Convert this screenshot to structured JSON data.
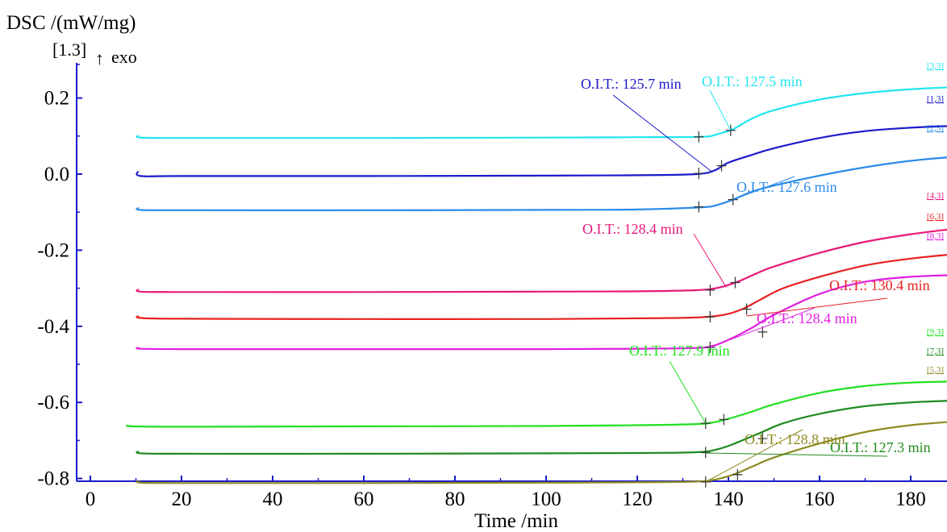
{
  "chart_data": {
    "type": "line",
    "ylabel": "DSC /(mW/mg)",
    "xlabel": "Time /min",
    "ylabel_tag": "[1.3]",
    "exo_label": "exo",
    "xlim": [
      -2,
      190
    ],
    "ylim": [
      -0.93,
      0.265
    ],
    "xticks": [
      0,
      20,
      40,
      60,
      80,
      100,
      120,
      140,
      160,
      180
    ],
    "xtick_labels": [
      "0",
      "20",
      "40",
      "60",
      "80",
      "100",
      "120",
      "140",
      "160",
      "180"
    ],
    "yticks": [
      0.2,
      0.0,
      -0.2,
      -0.4,
      -0.6,
      -0.8
    ],
    "ytick_labels": [
      "0.2",
      "0.0",
      "-0.2",
      "-0.4",
      "-0.6",
      "-0.8"
    ],
    "grid": false,
    "series": [
      {
        "name": "[3,3]",
        "color": "#20e6f0",
        "x": [
          10.5,
          11,
          20,
          60,
          100,
          120,
          134,
          137,
          141,
          145,
          150,
          160,
          170,
          180,
          190
        ],
        "y": [
          0.102,
          0.096,
          0.095,
          0.095,
          0.096,
          0.097,
          0.098,
          0.103,
          0.118,
          0.145,
          0.168,
          0.196,
          0.213,
          0.223,
          0.229
        ],
        "onset": {
          "x1": 133.5,
          "y1": 0.098,
          "x2": 140.5,
          "y2": 0.115
        },
        "oit_label": "O.I.T.: 127.5 min"
      },
      {
        "name": "[1,3]",
        "color": "#1a1acc",
        "x": [
          10.5,
          11,
          20,
          60,
          100,
          120,
          133,
          137,
          140,
          145,
          150,
          160,
          170,
          180,
          190
        ],
        "y": [
          0.008,
          -0.005,
          -0.005,
          -0.005,
          -0.004,
          -0.003,
          0.0,
          0.01,
          0.03,
          0.05,
          0.068,
          0.095,
          0.113,
          0.122,
          0.127
        ],
        "onset": {
          "x1": 133.5,
          "y1": 0.002,
          "x2": 138.5,
          "y2": 0.022
        },
        "oit_label": "O.I.T.: 125.7 min"
      },
      {
        "name": "[2,3]",
        "color": "#2a8ae8",
        "x": [
          10.5,
          11,
          20,
          60,
          100,
          120,
          133,
          137,
          141,
          145,
          150,
          160,
          170,
          180,
          190
        ],
        "y": [
          -0.088,
          -0.094,
          -0.095,
          -0.095,
          -0.094,
          -0.093,
          -0.088,
          -0.083,
          -0.067,
          -0.047,
          -0.03,
          -0.004,
          0.018,
          0.035,
          0.046
        ],
        "onset": {
          "x1": 133.5,
          "y1": -0.086,
          "x2": 141,
          "y2": -0.067
        },
        "oit_label": "O.I.T.: 127.6 min"
      },
      {
        "name": "[4,3]",
        "color": "#e8187a",
        "x": [
          10.5,
          11,
          20,
          60,
          100,
          120,
          133,
          138,
          142,
          146,
          150,
          160,
          170,
          180,
          190
        ],
        "y": [
          -0.302,
          -0.309,
          -0.31,
          -0.31,
          -0.309,
          -0.308,
          -0.305,
          -0.298,
          -0.283,
          -0.262,
          -0.243,
          -0.207,
          -0.178,
          -0.158,
          -0.143
        ],
        "onset": {
          "x1": 136,
          "y1": -0.305,
          "x2": 141.5,
          "y2": -0.285
        },
        "oit_label": "O.I.T.: 128.4 min"
      },
      {
        "name": "[6,3]",
        "color": "#e82020",
        "x": [
          10.5,
          11,
          20,
          60,
          100,
          120,
          133,
          139,
          143,
          147,
          152,
          160,
          170,
          180,
          190
        ],
        "y": [
          -0.372,
          -0.378,
          -0.38,
          -0.381,
          -0.381,
          -0.379,
          -0.377,
          -0.37,
          -0.355,
          -0.33,
          -0.3,
          -0.27,
          -0.24,
          -0.222,
          -0.21
        ],
        "onset": {
          "x1": 136,
          "y1": -0.375,
          "x2": 144,
          "y2": -0.355
        },
        "oit_label": "O.I.T.: 130.4 min"
      },
      {
        "name": "[8,3]",
        "color": "#e020e0",
        "x": [
          10.5,
          11,
          20,
          60,
          100,
          120,
          133,
          137,
          141,
          145,
          150,
          160,
          170,
          180,
          190
        ],
        "y": [
          -0.455,
          -0.459,
          -0.46,
          -0.46,
          -0.46,
          -0.459,
          -0.457,
          -0.45,
          -0.43,
          -0.405,
          -0.37,
          -0.315,
          -0.283,
          -0.27,
          -0.265
        ],
        "onset": {
          "x1": 136,
          "y1": -0.455,
          "x2": 147.5,
          "y2": -0.415
        },
        "oit_label": "O.I.T.: 128.4 min"
      },
      {
        "name": "[9,3]",
        "color": "#20e020",
        "x": [
          8.5,
          9,
          20,
          60,
          100,
          120,
          133,
          137,
          140,
          145,
          150,
          160,
          170,
          180,
          190
        ],
        "y": [
          -0.66,
          -0.663,
          -0.664,
          -0.663,
          -0.662,
          -0.66,
          -0.657,
          -0.652,
          -0.643,
          -0.625,
          -0.605,
          -0.575,
          -0.557,
          -0.548,
          -0.545
        ],
        "onset": {
          "x1": 135,
          "y1": -0.655,
          "x2": 139,
          "y2": -0.645
        },
        "oit_label": "O.I.T.: 127.9 min"
      },
      {
        "name": "[7,3]",
        "color": "#1e8a1e",
        "x": [
          10.5,
          11,
          20,
          60,
          100,
          120,
          133,
          138,
          142,
          147,
          152,
          160,
          170,
          180,
          190
        ],
        "y": [
          -0.728,
          -0.734,
          -0.735,
          -0.735,
          -0.734,
          -0.733,
          -0.731,
          -0.722,
          -0.705,
          -0.68,
          -0.655,
          -0.63,
          -0.61,
          -0.6,
          -0.595
        ],
        "onset": {
          "x1": 135,
          "y1": -0.732,
          "x2": 147.5,
          "y2": -0.695
        },
        "oit_label": "O.I.T.: 127.3 min"
      },
      {
        "name": "[5,3]",
        "color": "#8e8a20",
        "x": [
          10.5,
          11,
          20,
          60,
          100,
          120,
          133,
          137,
          141,
          145,
          150,
          160,
          170,
          180,
          190
        ],
        "y": [
          -0.806,
          -0.811,
          -0.812,
          -0.812,
          -0.811,
          -0.81,
          -0.808,
          -0.803,
          -0.79,
          -0.77,
          -0.745,
          -0.708,
          -0.678,
          -0.66,
          -0.65
        ],
        "onset": {
          "x1": 135,
          "y1": -0.809,
          "x2": 142,
          "y2": -0.79
        },
        "oit_label": "O.I.T.: 128.8 min"
      }
    ]
  }
}
